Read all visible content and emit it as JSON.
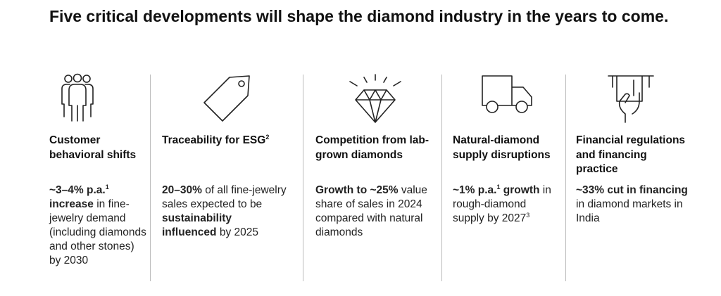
{
  "title": "Five critical developments will shape the diamond industry in the years to come.",
  "columns": [
    {
      "heading": [
        {
          "text": "Customer behavioral shifts"
        }
      ],
      "body": [
        {
          "text": "~3–4% p.a.",
          "bold": true
        },
        {
          "text": "1",
          "bold": true,
          "sup": true
        },
        {
          "text": " increase",
          "bold": true
        },
        {
          "text": " in fine-jewelry demand (including diamonds and other stones) by 2030"
        }
      ]
    },
    {
      "heading": [
        {
          "text": "Traceability for ESG"
        },
        {
          "text": "2",
          "sup": true
        }
      ],
      "body": [
        {
          "text": "20–30%",
          "bold": true
        },
        {
          "text": " of all fine-jewelry sales expected to be "
        },
        {
          "text": "sustainability influenced",
          "bold": true
        },
        {
          "text": " by 2025"
        }
      ]
    },
    {
      "heading": [
        {
          "text": "Competition from lab-grown diamonds"
        }
      ],
      "body": [
        {
          "text": "Growth to ~25%",
          "bold": true
        },
        {
          "text": " value share of sales in 2024 compared with natural diamonds"
        }
      ]
    },
    {
      "heading": [
        {
          "text": "Natural-diamond supply disruptions"
        }
      ],
      "body": [
        {
          "text": "~1% p.a.",
          "bold": true
        },
        {
          "text": "1",
          "bold": true,
          "sup": true
        },
        {
          "text": " growth",
          "bold": true
        },
        {
          "text": " in rough-diamond supply by 2027"
        },
        {
          "text": "3",
          "sup": true
        }
      ]
    },
    {
      "heading": [
        {
          "text": "Financial regulations and financing practice"
        }
      ],
      "body": [
        {
          "text": "~33% cut in financing",
          "bold": true
        },
        {
          "text": " in diamond markets in India"
        }
      ]
    }
  ]
}
